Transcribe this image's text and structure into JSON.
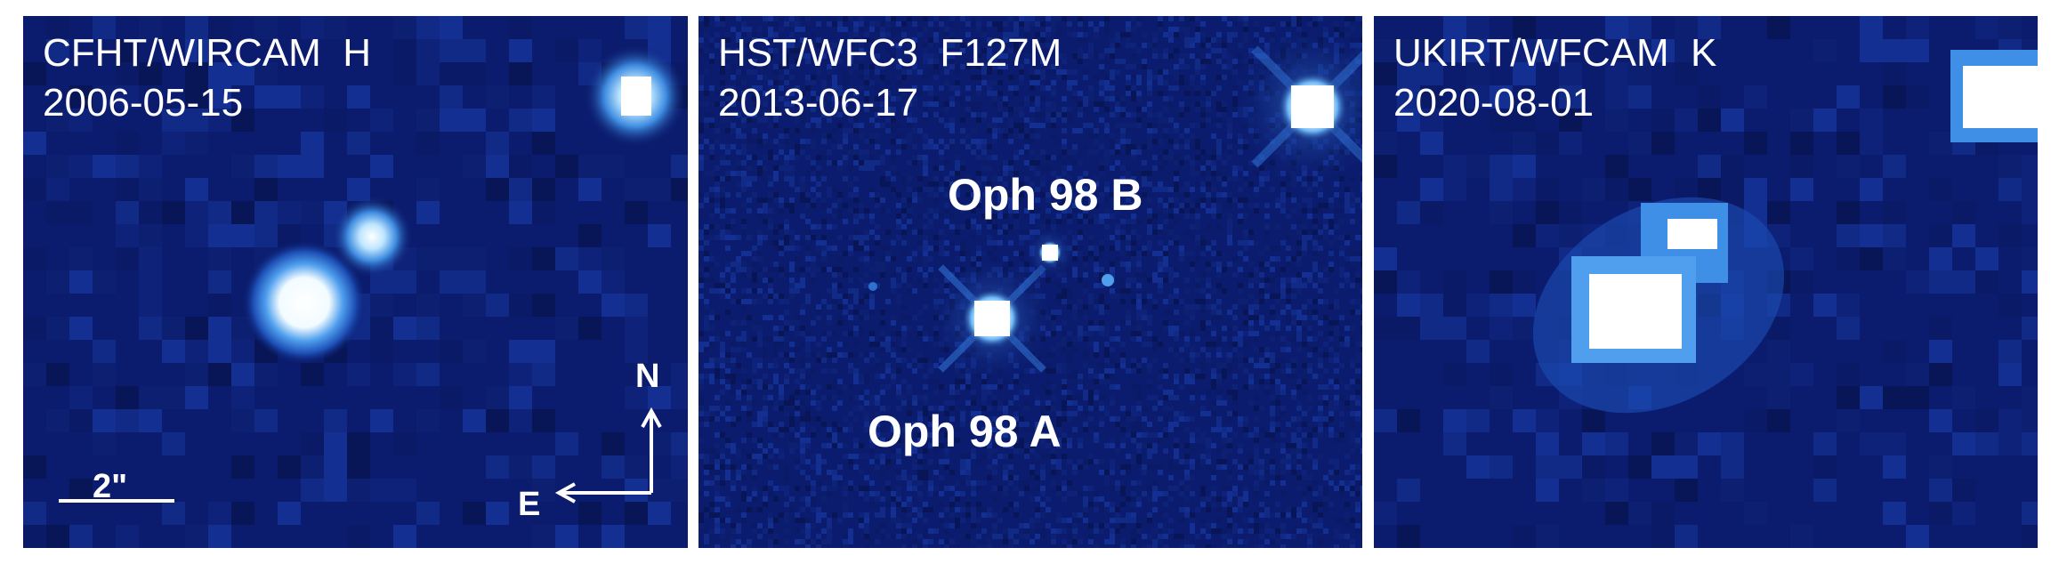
{
  "panels": [
    {
      "instrument": "CFHT/WIRCAM  H",
      "date": "2006-05-15",
      "scale_bar_label": "2\"",
      "compass": {
        "north": "N",
        "east": "E"
      }
    },
    {
      "instrument": "HST/WFC3  F127M",
      "date": "2013-06-17",
      "labels": {
        "secondary": "Oph 98 B",
        "primary": "Oph 98 A"
      }
    },
    {
      "instrument": "UKIRT/WFCAM  K",
      "date": "2020-08-01"
    }
  ],
  "colors": {
    "background": "#0b1c6e",
    "glow": "#3f8fe6",
    "core": "#ffffff",
    "annotation": "#ffffff"
  }
}
